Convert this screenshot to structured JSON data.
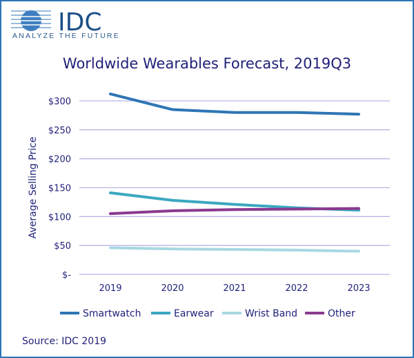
{
  "logo": {
    "brand": "IDC",
    "tagline": "ANALYZE THE FUTURE"
  },
  "source": "Source: IDC 2019",
  "chart_data": {
    "type": "line",
    "title": "Worldwide Wearables Forecast, 2019Q3",
    "xlabel": "",
    "ylabel": "Average Selling Price",
    "categories": [
      "2019",
      "2020",
      "2021",
      "2022",
      "2023"
    ],
    "ylim": [
      0,
      300
    ],
    "yticks": [
      0,
      50,
      100,
      150,
      200,
      250,
      300
    ],
    "ytick_labels": [
      "$-",
      "$50",
      "$100",
      "$150",
      "$200",
      "$250",
      "$300"
    ],
    "grid": true,
    "legend": "bottom",
    "series": [
      {
        "name": "Smartwatch",
        "color": "#2e75b6",
        "values": [
          312,
          285,
          280,
          280,
          277
        ]
      },
      {
        "name": "Earwear",
        "color": "#3ba8c0",
        "values": [
          141,
          128,
          121,
          115,
          111
        ]
      },
      {
        "name": "Wrist Band",
        "color": "#a8d8e3",
        "values": [
          46,
          44,
          43,
          42,
          40
        ]
      },
      {
        "name": "Other",
        "color": "#8b3a8f",
        "values": [
          105,
          110,
          112,
          113,
          114
        ]
      }
    ]
  }
}
